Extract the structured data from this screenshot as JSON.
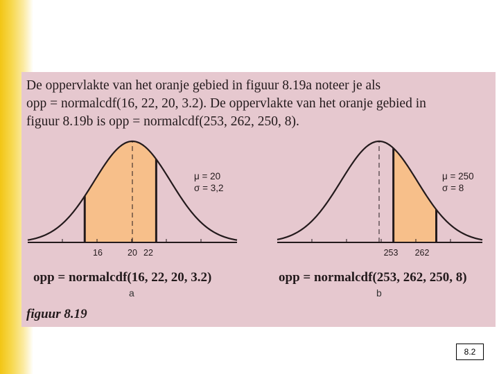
{
  "intro_lines": [
    "De oppervlakte van het oranje gebied in figuur 8.19a noteer je als",
    "opp = normalcdf(16, 22, 20, 3.2). De oppervlakte van het oranje gebied in",
    "figuur 8.19b is  opp = normalcdf(253, 262, 250, 8)."
  ],
  "graphs": [
    {
      "id": "a",
      "mu": 20,
      "sigma": 3.2,
      "shade_from": 16,
      "shade_to": 22,
      "tick_labels": [
        "16",
        "20",
        "22"
      ],
      "param_mu": "μ = 20",
      "param_sigma": "σ = 3,2",
      "formula": "opp = normalcdf(16, 22, 20, 3.2)",
      "sub_label": "a"
    },
    {
      "id": "b",
      "mu": 250,
      "sigma": 8,
      "shade_from": 253,
      "shade_to": 262,
      "tick_labels": [
        "253",
        "262"
      ],
      "param_mu": "μ = 250",
      "param_sigma": "σ = 8",
      "formula": "opp = normalcdf(253, 262, 250, 8)",
      "sub_label": "b"
    }
  ],
  "caption": "figuur 8.19",
  "page_number": "8.2",
  "colors": {
    "panel": "#e6c8cf",
    "shade": "#f7bf8a",
    "curve": "#231a1c",
    "accent_bar": "#f2c514"
  }
}
